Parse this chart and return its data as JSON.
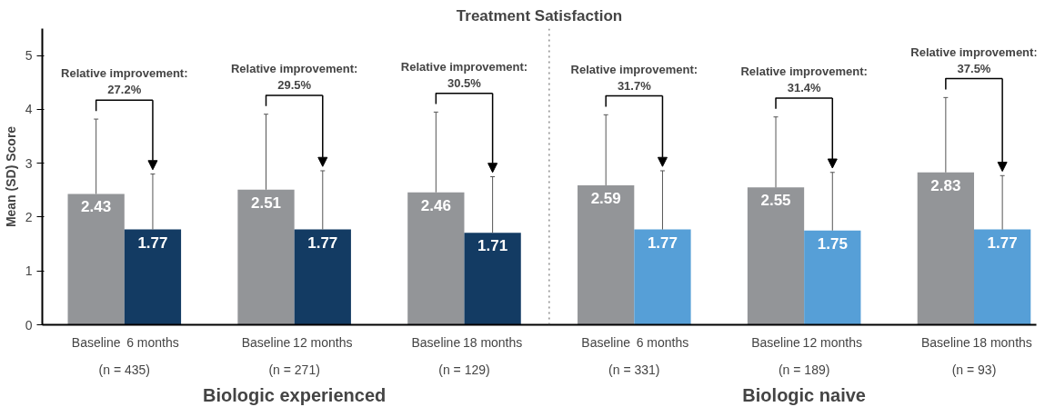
{
  "chart_data": {
    "type": "bar",
    "title": "Treatment Satisfaction",
    "ylabel": "Mean (SD) Score",
    "categories": [
      "Baseline",
      "6 months",
      "Baseline",
      "12 months",
      "Baseline",
      "18 months",
      "Baseline",
      "6 months",
      "Baseline",
      "12 months",
      "Baseline",
      "18 months"
    ],
    "values": [
      2.43,
      1.77,
      2.51,
      1.77,
      2.46,
      1.71,
      2.59,
      1.77,
      2.55,
      1.75,
      2.83,
      1.77
    ],
    "colors": [
      "#939598",
      "#133b63",
      "#939598",
      "#133b63",
      "#939598",
      "#133b63",
      "#939598",
      "#569fd7",
      "#939598",
      "#569fd7",
      "#939598",
      "#569fd7"
    ],
    "errors": [
      [
        2.43,
        3.82
      ],
      [
        1.77,
        2.8
      ],
      [
        2.51,
        3.91
      ],
      [
        1.77,
        2.86
      ],
      [
        2.46,
        3.95
      ],
      [
        1.71,
        2.75
      ],
      [
        2.59,
        3.9
      ],
      [
        1.77,
        2.86
      ],
      [
        2.55,
        3.86
      ],
      [
        1.75,
        2.83
      ],
      [
        2.83,
        4.22
      ],
      [
        1.77,
        2.77
      ]
    ],
    "data_labels": true,
    "ylim": [
      0,
      5.5
    ],
    "yticks": [
      0,
      1,
      2,
      3,
      4,
      5
    ],
    "grid": false,
    "annotations": [
      "Relative improvement:\n27.2%",
      "Relative improvement:\n29.5%",
      "Relative improvement:\n30.5%",
      "Relative improvement:\n31.7%",
      "Relative improvement:\n31.4%",
      "Relative improvement:\n37.5%",
      "(n = 435)",
      "(n = 271)",
      "(n = 129)",
      "(n = 331)",
      "(n = 189)",
      "(n = 93)",
      "Biologic experienced",
      "Biologic naive"
    ]
  }
}
